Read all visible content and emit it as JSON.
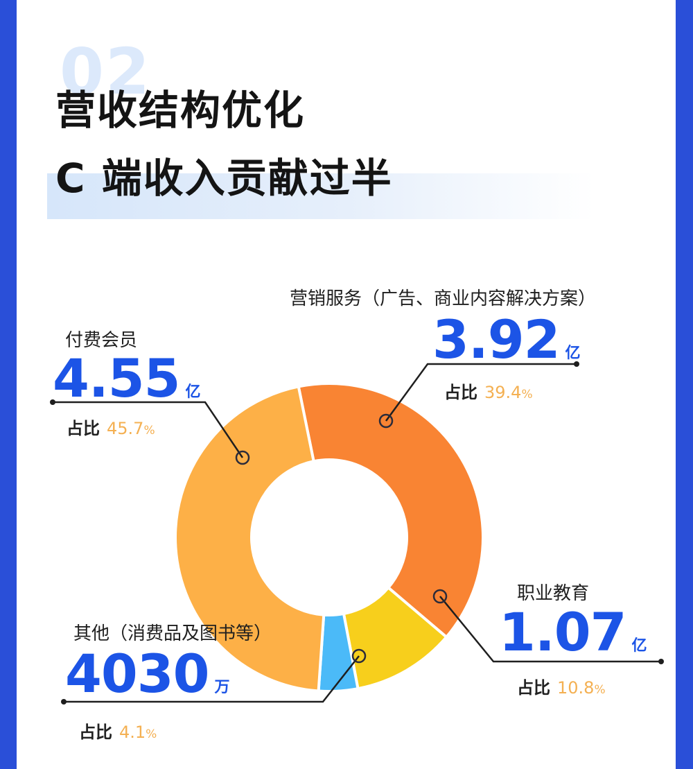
{
  "header": {
    "section_number": "02",
    "title_line1": "营收结构优化",
    "title_line2": "C 端收入贡献过半"
  },
  "colors": {
    "page_border": "#2a4fd8",
    "value_blue": "#1c54e6",
    "share_orange": "#f4b052"
  },
  "chart_data": {
    "type": "pie",
    "donut": true,
    "title": "",
    "share_label": "占比",
    "slices": [
      {
        "label": "营销服务（广告、商业内容解决方案）",
        "value_display": "3.92",
        "unit": "亿",
        "value": 3.92,
        "share": 39.4,
        "share_display": "39.4",
        "color": "#f98433"
      },
      {
        "label": "职业教育",
        "value_display": "1.07",
        "unit": "亿",
        "value": 1.07,
        "share": 10.8,
        "share_display": "10.8",
        "color": "#f7cf1c"
      },
      {
        "label": "其他（消费品及图书等）",
        "value_display": "4030",
        "unit": "万",
        "value": 0.403,
        "share": 4.1,
        "share_display": "4.1",
        "color": "#4bbaf8"
      },
      {
        "label": "付费会员",
        "value_display": "4.55",
        "unit": "亿",
        "value": 4.55,
        "share": 45.7,
        "share_display": "45.7",
        "color": "#fdb047"
      }
    ],
    "percent_sign": "%"
  }
}
